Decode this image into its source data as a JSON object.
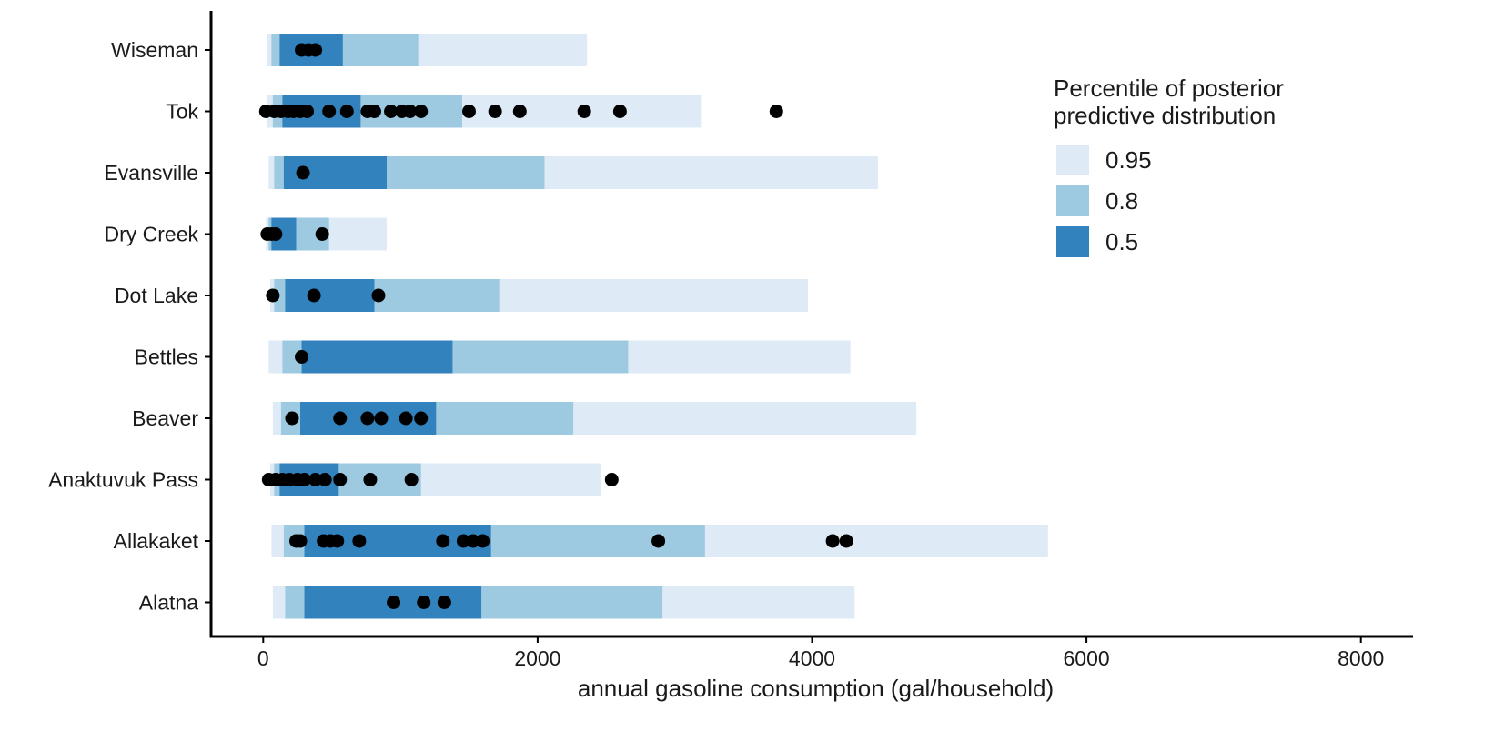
{
  "chart_data": {
    "type": "bar",
    "orientation": "horizontal",
    "xlabel": "annual gasoline consumption (gal/household)",
    "ylabel": "",
    "xlim": [
      -380,
      8380
    ],
    "xticks": [
      0,
      2000,
      4000,
      6000,
      8000
    ],
    "xtick_labels": [
      "0",
      "2000",
      "4000",
      "6000",
      "8000"
    ],
    "grid": false,
    "legend_position": "top-right",
    "legend": {
      "title_lines": [
        "Percentile of posterior",
        "predictive distribution"
      ],
      "items": [
        {
          "label": "0.95",
          "color": "#deebf7"
        },
        {
          "label": "0.8",
          "color": "#9ecae1"
        },
        {
          "label": "0.5",
          "color": "#3182bd"
        }
      ]
    },
    "colors": {
      "outer": "#deebf7",
      "middle": "#9ecae1",
      "inner": "#3182bd",
      "points": "#000000",
      "axis": "#000000"
    },
    "categories": [
      "Wiseman",
      "Tok",
      "Evansville",
      "Dry Creek",
      "Dot Lake",
      "Bettles",
      "Beaver",
      "Anaktuvuk Pass",
      "Allakaket",
      "Alatna"
    ],
    "intervals": [
      {
        "category": "Wiseman",
        "p95": [
          30,
          2360
        ],
        "p80": [
          60,
          1130
        ],
        "p50": [
          120,
          580
        ]
      },
      {
        "category": "Tok",
        "p95": [
          30,
          3190
        ],
        "p80": [
          70,
          1450
        ],
        "p50": [
          140,
          710
        ]
      },
      {
        "category": "Evansville",
        "p95": [
          40,
          4480
        ],
        "p80": [
          80,
          2050
        ],
        "p50": [
          150,
          900
        ]
      },
      {
        "category": "Dry Creek",
        "p95": [
          20,
          900
        ],
        "p80": [
          40,
          480
        ],
        "p50": [
          60,
          240
        ]
      },
      {
        "category": "Dot Lake",
        "p95": [
          50,
          3970
        ],
        "p80": [
          80,
          1720
        ],
        "p50": [
          160,
          810
        ]
      },
      {
        "category": "Bettles",
        "p95": [
          40,
          4280
        ],
        "p80": [
          140,
          2660
        ],
        "p50": [
          280,
          1380
        ]
      },
      {
        "category": "Beaver",
        "p95": [
          70,
          4760
        ],
        "p80": [
          130,
          2260
        ],
        "p50": [
          270,
          1260
        ]
      },
      {
        "category": "Anaktuvuk Pass",
        "p95": [
          50,
          2460
        ],
        "p80": [
          80,
          1150
        ],
        "p50": [
          120,
          550
        ]
      },
      {
        "category": "Allakaket",
        "p95": [
          60,
          5720
        ],
        "p80": [
          150,
          3220
        ],
        "p50": [
          300,
          1660
        ]
      },
      {
        "category": "Alatna",
        "p95": [
          70,
          4310
        ],
        "p80": [
          160,
          2910
        ],
        "p50": [
          300,
          1590
        ]
      }
    ],
    "observations": [
      {
        "category": "Wiseman",
        "values": [
          280,
          330,
          380
        ]
      },
      {
        "category": "Tok",
        "values": [
          20,
          80,
          130,
          180,
          220,
          270,
          320,
          480,
          610,
          760,
          810,
          930,
          1010,
          1070,
          1150,
          1500,
          1690,
          1870,
          2340,
          2600,
          3740
        ]
      },
      {
        "category": "Evansville",
        "values": [
          290
        ]
      },
      {
        "category": "Dry Creek",
        "values": [
          30,
          60,
          90,
          430
        ]
      },
      {
        "category": "Dot Lake",
        "values": [
          70,
          370,
          840
        ]
      },
      {
        "category": "Bettles",
        "values": [
          280
        ]
      },
      {
        "category": "Beaver",
        "values": [
          210,
          560,
          760,
          860,
          1040,
          1150
        ]
      },
      {
        "category": "Anaktuvuk Pass",
        "values": [
          40,
          90,
          140,
          190,
          250,
          300,
          380,
          450,
          560,
          780,
          1080,
          2540
        ]
      },
      {
        "category": "Allakaket",
        "values": [
          240,
          270,
          440,
          490,
          540,
          700,
          1310,
          1460,
          1530,
          1600,
          2880,
          4150,
          4250
        ]
      },
      {
        "category": "Alatna",
        "values": [
          950,
          1170,
          1320
        ]
      }
    ]
  }
}
